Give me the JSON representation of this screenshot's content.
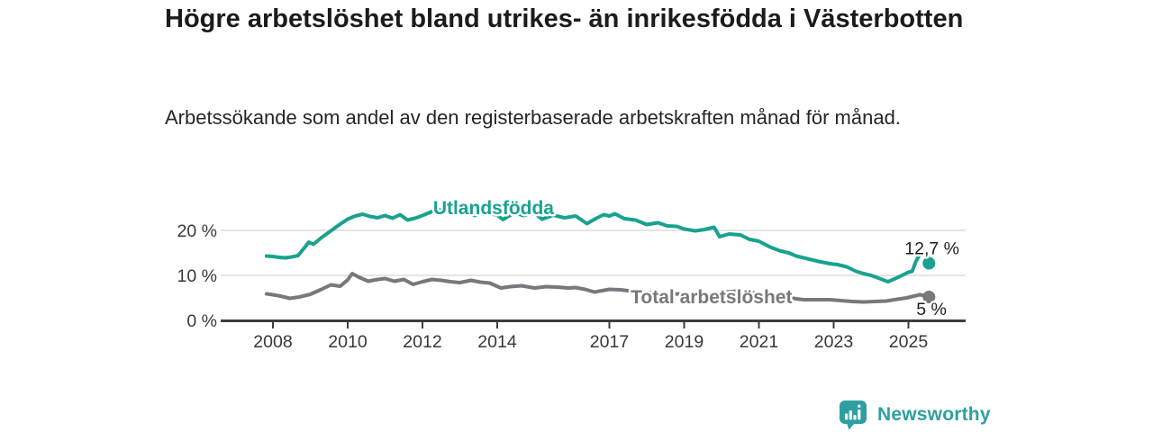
{
  "header": {
    "title": "Högre arbetslöshet bland utrikes- än inrikesfödda i Västerbotten",
    "subtitle": "Arbetssökande som andel av den registerbaserade arbetskraften månad för månad."
  },
  "chart_data": {
    "type": "line",
    "title": "Högre arbetslöshet bland utrikes- än inrikesfödda i Västerbotten",
    "unit": "%",
    "grid": true,
    "x_axis": {
      "ticks": [
        2008,
        2010,
        2012,
        2014,
        2017,
        2019,
        2021,
        2023,
        2025
      ],
      "range": [
        2006.6,
        2026.5
      ]
    },
    "y_axis": {
      "ticks": [
        {
          "value": 0,
          "label": "0 %"
        },
        {
          "value": 10,
          "label": "10 %"
        },
        {
          "value": 20,
          "label": "20 %"
        }
      ],
      "range": [
        0,
        26.5
      ]
    },
    "colors": {
      "grid": "#dcdcdc",
      "axis": "#3d3d3d",
      "axis_text": "#383838",
      "value_text": "#1d1d1d",
      "halo": "#ffffff"
    },
    "series": [
      {
        "id": "utlandsfodda",
        "name": "Utlandsfödda",
        "color": "#18A28F",
        "label": {
          "year": 2013.9,
          "value": 25.0
        },
        "end_dot": {
          "year": 2025.55,
          "value": 12.7
        },
        "end_label": "12,7 %",
        "end_label_position": "above",
        "points": [
          [
            2007.83,
            14.3
          ],
          [
            2008.0,
            14.2
          ],
          [
            2008.17,
            14.0
          ],
          [
            2008.33,
            13.9
          ],
          [
            2008.5,
            14.1
          ],
          [
            2008.67,
            14.4
          ],
          [
            2008.83,
            16.0
          ],
          [
            2008.96,
            17.4
          ],
          [
            2009.08,
            16.9
          ],
          [
            2009.3,
            18.4
          ],
          [
            2009.55,
            19.9
          ],
          [
            2009.8,
            21.4
          ],
          [
            2010.0,
            22.5
          ],
          [
            2010.2,
            23.2
          ],
          [
            2010.4,
            23.6
          ],
          [
            2010.6,
            23.1
          ],
          [
            2010.8,
            22.8
          ],
          [
            2011.0,
            23.3
          ],
          [
            2011.2,
            22.7
          ],
          [
            2011.4,
            23.5
          ],
          [
            2011.6,
            22.3
          ],
          [
            2011.8,
            22.7
          ],
          [
            2012.0,
            23.3
          ],
          [
            2012.2,
            24.0
          ],
          [
            2012.4,
            24.7
          ],
          [
            2012.6,
            24.3
          ],
          [
            2012.85,
            23.7
          ],
          [
            2013.1,
            24.3
          ],
          [
            2013.4,
            23.3
          ],
          [
            2013.7,
            24.0
          ],
          [
            2014.0,
            23.4
          ],
          [
            2014.15,
            22.4
          ],
          [
            2014.45,
            23.9
          ],
          [
            2014.7,
            23.3
          ],
          [
            2015.0,
            23.8
          ],
          [
            2015.2,
            22.5
          ],
          [
            2015.5,
            23.4
          ],
          [
            2015.8,
            22.8
          ],
          [
            2016.1,
            23.2
          ],
          [
            2016.4,
            21.5
          ],
          [
            2016.65,
            22.7
          ],
          [
            2016.85,
            23.5
          ],
          [
            2017.0,
            23.2
          ],
          [
            2017.15,
            23.7
          ],
          [
            2017.4,
            22.6
          ],
          [
            2017.7,
            22.3
          ],
          [
            2018.0,
            21.3
          ],
          [
            2018.3,
            21.7
          ],
          [
            2018.55,
            21.0
          ],
          [
            2018.8,
            20.9
          ],
          [
            2019.0,
            20.3
          ],
          [
            2019.3,
            19.9
          ],
          [
            2019.55,
            20.2
          ],
          [
            2019.8,
            20.7
          ],
          [
            2019.95,
            18.6
          ],
          [
            2020.2,
            19.2
          ],
          [
            2020.5,
            19.0
          ],
          [
            2020.75,
            18.0
          ],
          [
            2021.0,
            17.6
          ],
          [
            2021.3,
            16.3
          ],
          [
            2021.55,
            15.5
          ],
          [
            2021.8,
            15.0
          ],
          [
            2022.0,
            14.3
          ],
          [
            2022.3,
            13.7
          ],
          [
            2022.6,
            13.1
          ],
          [
            2022.9,
            12.6
          ],
          [
            2023.1,
            12.4
          ],
          [
            2023.35,
            11.9
          ],
          [
            2023.6,
            10.9
          ],
          [
            2023.8,
            10.4
          ],
          [
            2024.0,
            10.0
          ],
          [
            2024.2,
            9.4
          ],
          [
            2024.45,
            8.6
          ],
          [
            2024.65,
            9.3
          ],
          [
            2024.85,
            10.1
          ],
          [
            2025.0,
            10.7
          ],
          [
            2025.1,
            10.9
          ],
          [
            2025.2,
            13.1
          ],
          [
            2025.28,
            14.3
          ]
        ]
      },
      {
        "id": "total",
        "name": "Total arbetslöshet",
        "color": "#77787B",
        "label": {
          "year": 2019.73,
          "value": 5.2
        },
        "end_dot": {
          "year": 2025.55,
          "value": 5.2
        },
        "end_label": "5 %",
        "end_label_position": "below",
        "points": [
          [
            2007.83,
            5.9
          ],
          [
            2008.0,
            5.7
          ],
          [
            2008.2,
            5.4
          ],
          [
            2008.45,
            4.9
          ],
          [
            2008.7,
            5.2
          ],
          [
            2009.0,
            5.8
          ],
          [
            2009.3,
            6.9
          ],
          [
            2009.55,
            7.9
          ],
          [
            2009.8,
            7.6
          ],
          [
            2010.0,
            9.0
          ],
          [
            2010.12,
            10.4
          ],
          [
            2010.3,
            9.6
          ],
          [
            2010.55,
            8.7
          ],
          [
            2010.8,
            9.1
          ],
          [
            2011.0,
            9.3
          ],
          [
            2011.25,
            8.7
          ],
          [
            2011.5,
            9.1
          ],
          [
            2011.75,
            8.0
          ],
          [
            2012.0,
            8.6
          ],
          [
            2012.25,
            9.1
          ],
          [
            2012.5,
            8.9
          ],
          [
            2012.75,
            8.6
          ],
          [
            2013.0,
            8.4
          ],
          [
            2013.3,
            8.9
          ],
          [
            2013.55,
            8.5
          ],
          [
            2013.8,
            8.3
          ],
          [
            2014.1,
            7.2
          ],
          [
            2014.35,
            7.5
          ],
          [
            2014.65,
            7.7
          ],
          [
            2015.0,
            7.2
          ],
          [
            2015.3,
            7.5
          ],
          [
            2015.6,
            7.4
          ],
          [
            2015.9,
            7.2
          ],
          [
            2016.1,
            7.3
          ],
          [
            2016.35,
            6.9
          ],
          [
            2016.6,
            6.3
          ],
          [
            2016.8,
            6.6
          ],
          [
            2017.0,
            6.9
          ],
          [
            2017.3,
            6.8
          ],
          [
            2017.6,
            6.5
          ],
          [
            2018.0,
            6.2
          ],
          [
            2018.5,
            6.0
          ],
          [
            2019.0,
            5.8
          ],
          [
            2019.5,
            5.6
          ],
          [
            2020.0,
            6.2
          ],
          [
            2020.4,
            6.5
          ],
          [
            2020.8,
            6.2
          ],
          [
            2021.2,
            5.7
          ],
          [
            2021.6,
            5.3
          ],
          [
            2022.0,
            4.8
          ],
          [
            2022.2,
            4.6
          ],
          [
            2022.6,
            4.6
          ],
          [
            2022.9,
            4.6
          ],
          [
            2023.2,
            4.4
          ],
          [
            2023.5,
            4.2
          ],
          [
            2023.8,
            4.1
          ],
          [
            2024.1,
            4.2
          ],
          [
            2024.4,
            4.3
          ],
          [
            2024.7,
            4.7
          ],
          [
            2024.95,
            5.0
          ],
          [
            2025.1,
            5.3
          ],
          [
            2025.3,
            5.7
          ],
          [
            2025.45,
            5.5
          ]
        ]
      }
    ]
  },
  "logo": {
    "name": "Newsworthy",
    "color": "#2E9FA1"
  }
}
